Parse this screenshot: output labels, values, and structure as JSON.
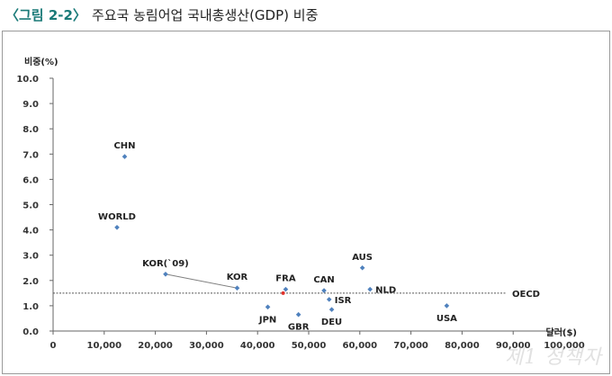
{
  "figure": {
    "label": "〈그림 2-2〉",
    "title": "주요국 농림어업 국내총생산(GDP) 비중"
  },
  "watermark": "제1 정책자",
  "colors": {
    "point": "#4f81bd",
    "highlight_point": "#e0312b",
    "reference_line": "#555555",
    "connector": "#808080",
    "axis": "#666666",
    "label_accent": "#1a7a78"
  },
  "chart_data": {
    "type": "scatter",
    "xlabel": "달러($)",
    "ylabel": "비중(%)",
    "xlim": [
      0,
      100000
    ],
    "ylim": [
      0,
      10
    ],
    "x_ticks": [
      0,
      10000,
      20000,
      30000,
      40000,
      50000,
      60000,
      70000,
      80000,
      90000,
      100000
    ],
    "x_tick_labels": [
      "0",
      "10,000",
      "20,000",
      "30,000",
      "40,000",
      "50,000",
      "60,000",
      "70,000",
      "80,000",
      "90,000",
      "100,000"
    ],
    "y_ticks": [
      0,
      1,
      2,
      3,
      4,
      5,
      6,
      7,
      8,
      9,
      10
    ],
    "y_tick_labels": [
      "0.0",
      "1.0",
      "2.0",
      "3.0",
      "4.0",
      "5.0",
      "6.0",
      "7.0",
      "8.0",
      "9.0",
      "10.0"
    ],
    "grid": false,
    "reference_line": {
      "name": "OECD",
      "y": 1.5
    },
    "points": [
      {
        "label": "CHN",
        "x": 14000,
        "y": 6.9,
        "label_pos": "above"
      },
      {
        "label": "WORLD",
        "x": 12500,
        "y": 4.1,
        "label_pos": "above"
      },
      {
        "label": "KOR(`09)",
        "x": 22000,
        "y": 2.25,
        "label_pos": "above"
      },
      {
        "label": "KOR",
        "x": 36000,
        "y": 1.7,
        "label_pos": "above"
      },
      {
        "label": "FRA",
        "x": 45500,
        "y": 1.65,
        "label_pos": "above"
      },
      {
        "label": "CAN",
        "x": 53000,
        "y": 1.6,
        "label_pos": "above"
      },
      {
        "label": "AUS",
        "x": 60500,
        "y": 2.5,
        "label_pos": "above"
      },
      {
        "label": "NLD",
        "x": 62000,
        "y": 1.65,
        "label_pos": "right"
      },
      {
        "label": "ISR",
        "x": 54000,
        "y": 1.25,
        "label_pos": "right"
      },
      {
        "label": "JPN",
        "x": 42000,
        "y": 0.95,
        "label_pos": "below"
      },
      {
        "label": "GBR",
        "x": 48000,
        "y": 0.65,
        "label_pos": "below"
      },
      {
        "label": "DEU",
        "x": 54500,
        "y": 0.85,
        "label_pos": "below"
      },
      {
        "label": "USA",
        "x": 77000,
        "y": 1.0,
        "label_pos": "below"
      }
    ],
    "highlight_point": {
      "x": 45000,
      "y": 1.5
    },
    "connector": {
      "from": "KOR(`09)",
      "to": "KOR"
    }
  }
}
